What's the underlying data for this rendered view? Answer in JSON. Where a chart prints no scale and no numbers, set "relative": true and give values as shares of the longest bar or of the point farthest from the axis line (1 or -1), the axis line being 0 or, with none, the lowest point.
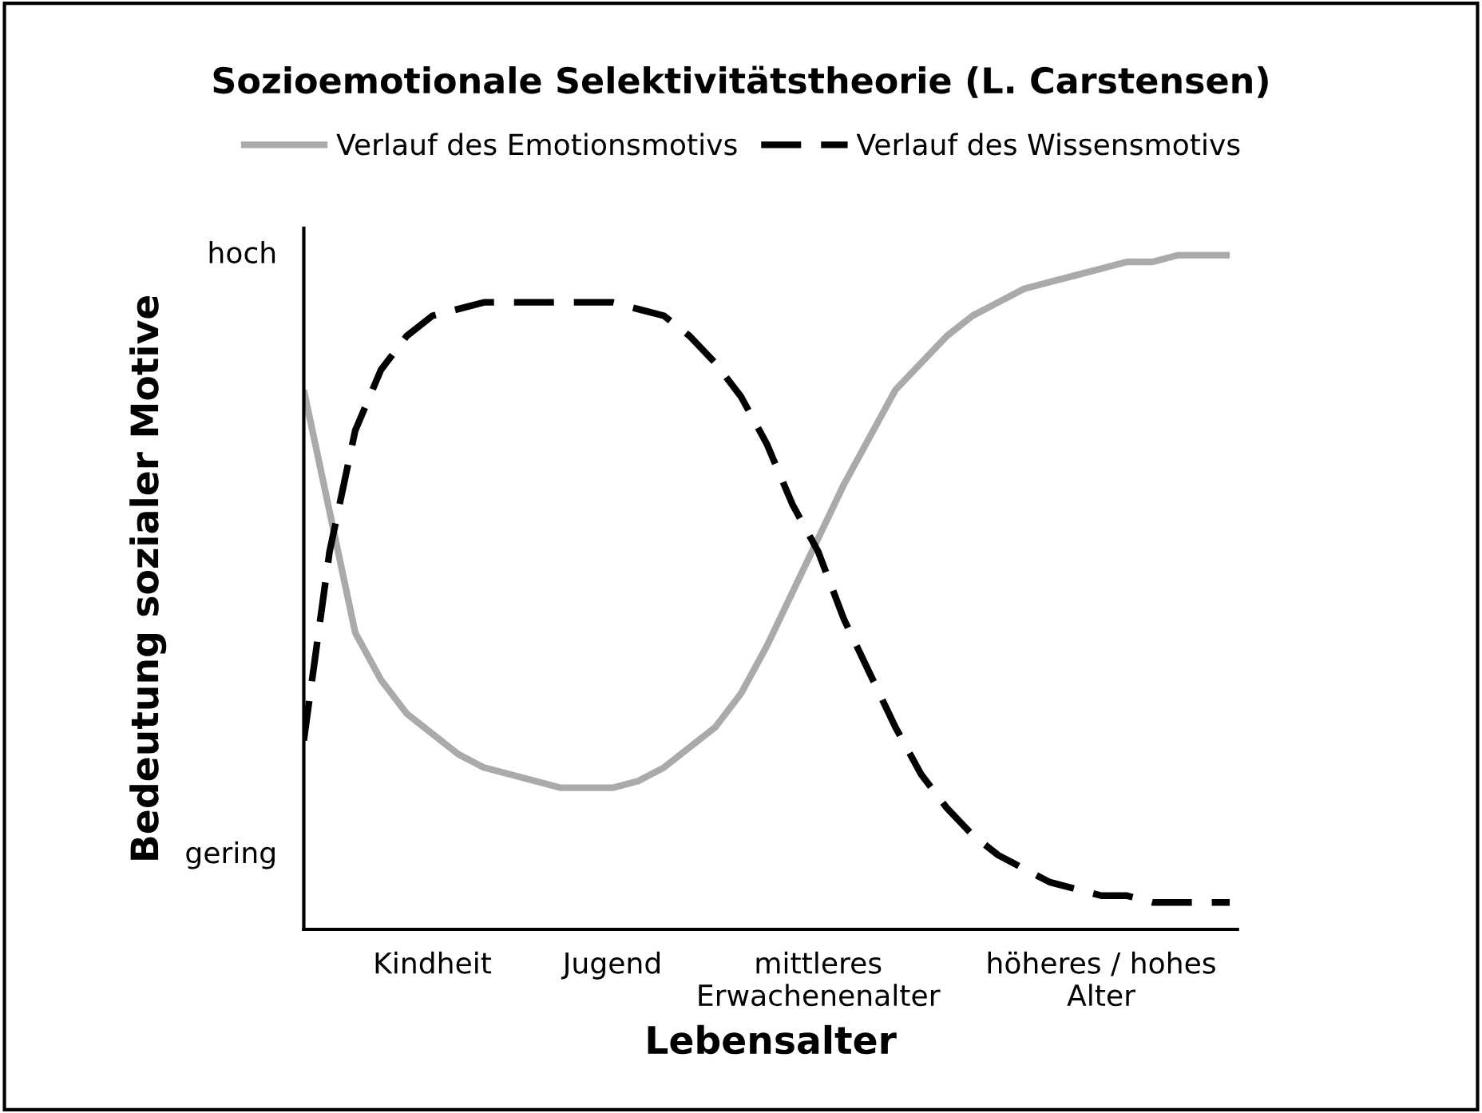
{
  "chart_data": {
    "type": "line",
    "title": "Sozioemotionale Selektivitätstheorie (L. Carstensen)",
    "xlabel": "Lebensalter",
    "ylabel": "Bedeutung sozialer Motive",
    "relative": true,
    "legend": "top",
    "grid": false,
    "marker": "none",
    "annotations": [
      "hoch",
      "gering"
    ],
    "categories": [
      null,
      null,
      null,
      null,
      null,
      "Kindheit",
      null,
      null,
      null,
      null,
      null,
      null,
      "Jugend",
      null,
      null,
      null,
      null,
      null,
      null,
      null,
      "mittleres\nErwachenenalter",
      null,
      null,
      null,
      null,
      null,
      null,
      null,
      null,
      null,
      null,
      "höheres / hohes\nAlter",
      null,
      null,
      null,
      null,
      null
    ],
    "series": [
      {
        "name": "Verlauf des Emotionsmotivs",
        "color": "#aaaaaa",
        "line_style": "solid",
        "values": [
          0.8,
          0.62,
          0.44,
          0.37,
          0.32,
          0.29,
          0.26,
          0.24,
          0.23,
          0.22,
          0.21,
          0.21,
          0.21,
          0.22,
          0.24,
          0.27,
          0.3,
          0.35,
          0.42,
          0.5,
          0.58,
          0.66,
          0.73,
          0.8,
          0.84,
          0.88,
          0.91,
          0.93,
          0.95,
          0.96,
          0.97,
          0.98,
          0.99,
          0.99,
          1.0,
          1.0,
          1.0
        ]
      },
      {
        "name": "Verlauf des Wissensmotivs",
        "color": "#000000",
        "line_style": "dashed",
        "values": [
          0.28,
          0.56,
          0.74,
          0.83,
          0.88,
          0.91,
          0.92,
          0.93,
          0.93,
          0.93,
          0.93,
          0.93,
          0.93,
          0.92,
          0.91,
          0.88,
          0.84,
          0.79,
          0.72,
          0.63,
          0.56,
          0.46,
          0.38,
          0.3,
          0.23,
          0.18,
          0.14,
          0.11,
          0.09,
          0.07,
          0.06,
          0.05,
          0.05,
          0.04,
          0.04,
          0.04,
          0.04
        ]
      }
    ]
  }
}
